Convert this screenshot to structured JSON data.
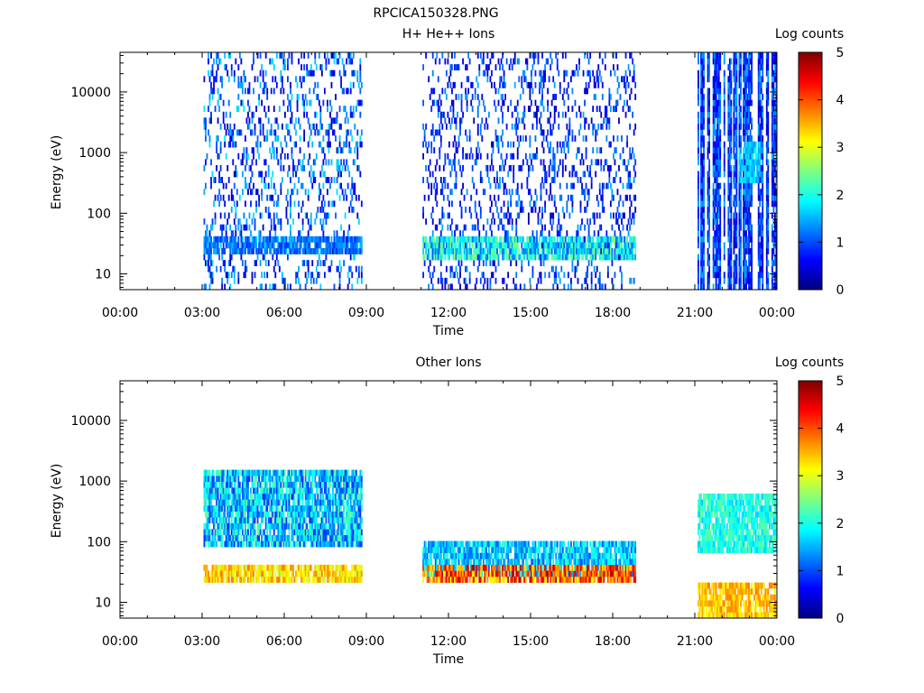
{
  "figure_title": "RPCICA150328.PNG",
  "colors": {
    "colormap": [
      "#00007f",
      "#0000ff",
      "#007fff",
      "#00ffff",
      "#7fff7f",
      "#ffff00",
      "#ff7f00",
      "#ff0000",
      "#7f0000"
    ],
    "axes": "#000000",
    "background": "#ffffff"
  },
  "chart_data": [
    {
      "type": "heatmap",
      "title": "H+ He++ Ions",
      "xlabel": "Time",
      "ylabel": "Energy (eV)",
      "x_tick_labels": [
        "00:00",
        "03:00",
        "06:00",
        "09:00",
        "12:00",
        "15:00",
        "18:00",
        "21:00",
        "00:00"
      ],
      "x_ticks_hours": [
        0,
        3,
        6,
        9,
        12,
        15,
        18,
        21,
        24
      ],
      "xlim_hours": [
        0,
        24
      ],
      "y_scale": "log",
      "y_tick_labels": [
        "10",
        "100",
        "1000",
        "10000"
      ],
      "y_ticks": [
        10,
        100,
        1000,
        10000
      ],
      "ylim": [
        5.5,
        45000
      ],
      "colorbar": {
        "label": "Log counts",
        "range": [
          0,
          5
        ],
        "tick_labels": [
          "0",
          "1",
          "2",
          "3",
          "4",
          "5"
        ]
      },
      "data_intervals_hours": [
        [
          3.05,
          8.85
        ],
        [
          11.05,
          18.85
        ],
        [
          21.1,
          24.0
        ]
      ],
      "features": [
        {
          "hours": [
            3.05,
            8.85
          ],
          "energy_eV": [
            5.5,
            42000
          ],
          "log_counts": [
            0.2,
            1.8
          ],
          "note": "sparse scattered counts"
        },
        {
          "hours": [
            3.05,
            8.85
          ],
          "energy_eV": [
            22,
            45
          ],
          "log_counts": [
            0.8,
            1.6
          ],
          "note": "low-energy band"
        },
        {
          "hours": [
            11.05,
            18.85
          ],
          "energy_eV": [
            5.5,
            42000
          ],
          "log_counts": [
            0.2,
            1.5
          ],
          "note": "sparse scattered counts"
        },
        {
          "hours": [
            11.05,
            18.85
          ],
          "energy_eV": [
            17,
            45
          ],
          "log_counts": [
            1.0,
            2.6
          ],
          "note": "low-energy band"
        },
        {
          "hours": [
            21.1,
            24.0
          ],
          "energy_eV": [
            5.5,
            45000
          ],
          "log_counts": [
            0.3,
            1.5
          ],
          "note": "striped full-energy coverage"
        },
        {
          "hours": [
            22.6,
            23.4
          ],
          "energy_eV": [
            300,
            1500
          ],
          "log_counts": [
            1.3,
            1.9
          ],
          "note": "diffuse enhancement"
        }
      ]
    },
    {
      "type": "heatmap",
      "title": "Other Ions",
      "xlabel": "Time",
      "ylabel": "Energy (eV)",
      "x_tick_labels": [
        "00:00",
        "03:00",
        "06:00",
        "09:00",
        "12:00",
        "15:00",
        "18:00",
        "21:00",
        "00:00"
      ],
      "x_ticks_hours": [
        0,
        3,
        6,
        9,
        12,
        15,
        18,
        21,
        24
      ],
      "xlim_hours": [
        0,
        24
      ],
      "y_scale": "log",
      "y_tick_labels": [
        "10",
        "100",
        "1000",
        "10000"
      ],
      "y_ticks": [
        10,
        100,
        1000,
        10000
      ],
      "ylim": [
        5.5,
        45000
      ],
      "colorbar": {
        "label": "Log counts",
        "range": [
          0,
          5
        ],
        "tick_labels": [
          "0",
          "1",
          "2",
          "3",
          "4",
          "5"
        ]
      },
      "data_intervals_hours": [
        [
          3.05,
          8.85
        ],
        [
          11.05,
          18.85
        ],
        [
          21.1,
          24.0
        ]
      ],
      "features": [
        {
          "hours": [
            3.05,
            8.85
          ],
          "energy_eV": [
            80,
            1400
          ],
          "log_counts": [
            0.8,
            2.4
          ],
          "note": "broad mid-energy population"
        },
        {
          "hours": [
            3.05,
            8.85
          ],
          "energy_eV": [
            20,
            45
          ],
          "log_counts": [
            2.8,
            3.8
          ],
          "note": "intense low-energy band"
        },
        {
          "hours": [
            11.05,
            18.85
          ],
          "energy_eV": [
            25,
            100
          ],
          "log_counts": [
            1.0,
            2.2
          ],
          "note": "mid band"
        },
        {
          "hours": [
            11.05,
            18.85
          ],
          "energy_eV": [
            20,
            45
          ],
          "log_counts": [
            3.0,
            4.8
          ],
          "note": "intense low-energy band"
        },
        {
          "hours": [
            21.1,
            24.0
          ],
          "energy_eV": [
            60,
            600
          ],
          "log_counts": [
            1.6,
            2.4
          ],
          "note": "diffuse enhancement"
        },
        {
          "hours": [
            21.1,
            24.0
          ],
          "energy_eV": [
            5.5,
            22
          ],
          "log_counts": [
            3.0,
            3.8
          ],
          "note": "low-energy band"
        }
      ]
    }
  ]
}
